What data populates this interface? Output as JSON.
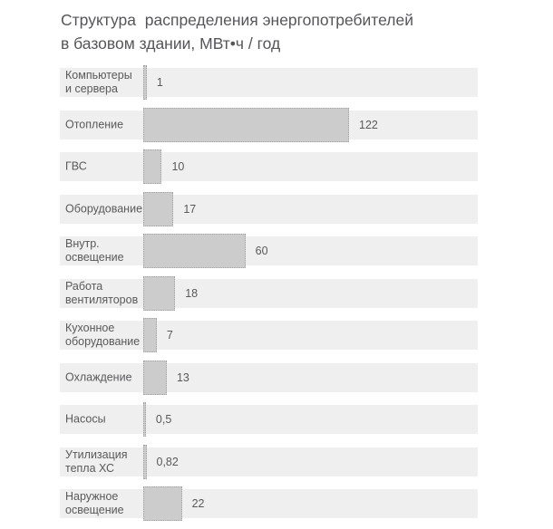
{
  "title": "Структура  распределения энергопотребителей\nв базовом здании, МВт•ч / год",
  "chart_data": {
    "type": "bar",
    "orientation": "horizontal",
    "title": "Структура распределения энергопотребителей в базовом здании, МВт•ч / год",
    "unit": "МВт•ч / год",
    "categories": [
      "Компьютеры и сервера",
      "Отопление",
      "ГВС",
      "Оборудование",
      "Внутр. освещение",
      "Работа вентиляторов",
      "Кухонное оборудование",
      "Охлаждение",
      "Насосы",
      "Утилизация тепла ХС",
      "Наружное освещение"
    ],
    "display_labels": [
      "Компьютеры\nи сервера",
      "Отопление",
      "ГВС",
      "Оборудование",
      "Внутр.\nосвещение",
      "Работа\nвентиляторов",
      "Кухонное\nоборудование",
      "Охлаждение",
      "Насосы",
      "Утилизация\nтепла ХС",
      "Наружное\nосвещение"
    ],
    "values": [
      1,
      122,
      10,
      17,
      60,
      18,
      7,
      13,
      0.5,
      0.82,
      22
    ],
    "value_labels": [
      "1",
      "122",
      "10",
      "17",
      "60",
      "18",
      "7",
      "13",
      "0,5",
      "0,82",
      "22"
    ],
    "xlim": [
      0,
      250
    ],
    "grid": false,
    "legend": false
  },
  "colors": {
    "background": "#ffffff",
    "row_band": "#f0eff0",
    "bar_fill": "#cdcccd",
    "bar_border": "#a2a2a2",
    "text": "#58595b"
  }
}
